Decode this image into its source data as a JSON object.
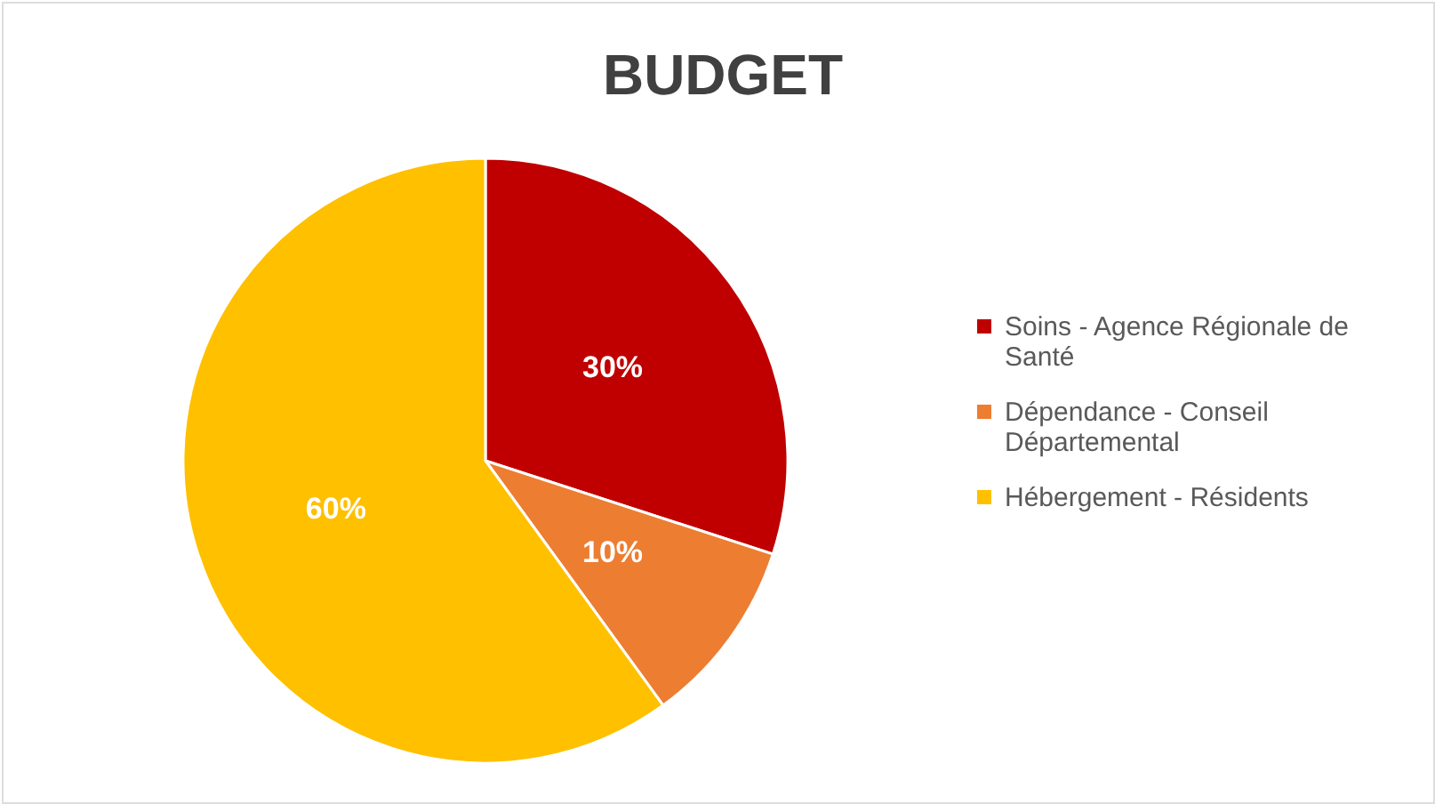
{
  "chart_data": {
    "type": "pie",
    "title": "BUDGET",
    "categories": [
      "Soins - Agence Régionale de Santé",
      "Dépendance - Conseil Départemental",
      "Hébergement - Résidents"
    ],
    "values": [
      30,
      10,
      60
    ],
    "colors": [
      "#c00000",
      "#ed7d31",
      "#ffc000"
    ],
    "value_labels": [
      "30%",
      "10%",
      "60%"
    ],
    "legend": "right"
  }
}
